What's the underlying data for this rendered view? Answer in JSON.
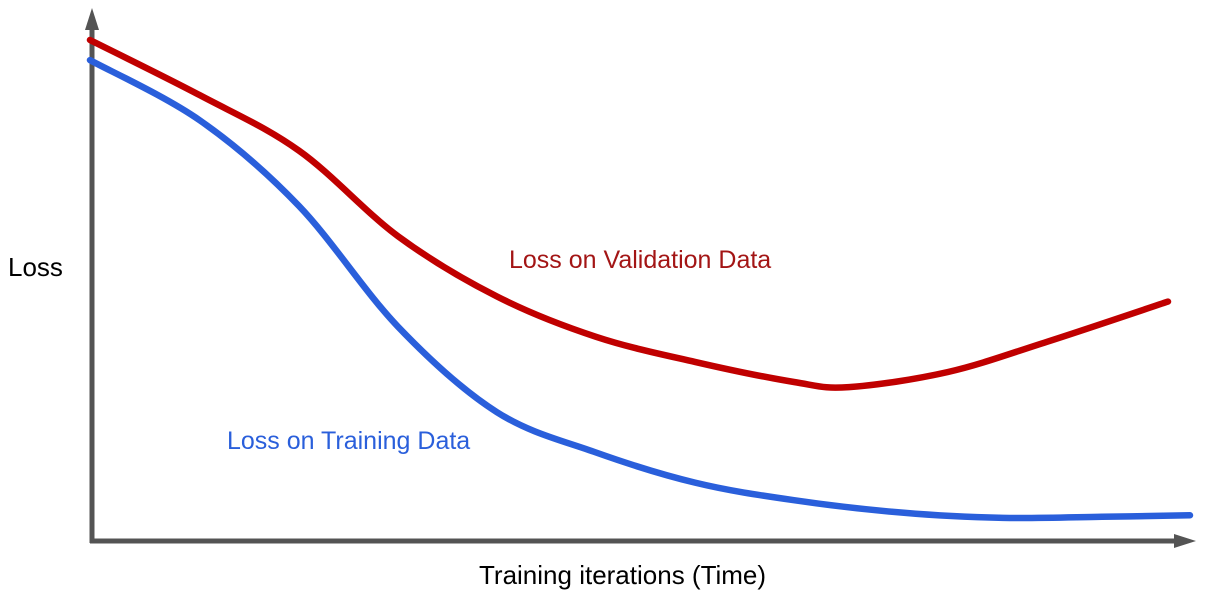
{
  "chart_data": {
    "type": "line",
    "title": "",
    "xlabel": "Training iterations (Time)",
    "ylabel": "Loss",
    "xlim": [
      0,
      100
    ],
    "ylim": [
      0,
      1
    ],
    "grid": false,
    "legend_position": "inline-annotations",
    "axes_color": "#545454",
    "series": [
      {
        "name": "Loss on Validation Data",
        "color": "#c00000",
        "label_color": "#a31515",
        "x": [
          0,
          10,
          19,
          28,
          37,
          46,
          55,
          64,
          69,
          78,
          87,
          98
        ],
        "y": [
          1.0,
          0.89,
          0.78,
          0.61,
          0.49,
          0.41,
          0.36,
          0.32,
          0.31,
          0.34,
          0.4,
          0.48
        ]
      },
      {
        "name": "Loss on Training Data",
        "color": "#2a5fdb",
        "label_color": "#2a5fdb",
        "x": [
          0,
          10,
          19,
          28,
          37,
          46,
          55,
          64,
          74,
          83,
          92,
          100
        ],
        "y": [
          0.96,
          0.84,
          0.67,
          0.43,
          0.26,
          0.18,
          0.12,
          0.085,
          0.06,
          0.05,
          0.052,
          0.055
        ]
      }
    ]
  }
}
